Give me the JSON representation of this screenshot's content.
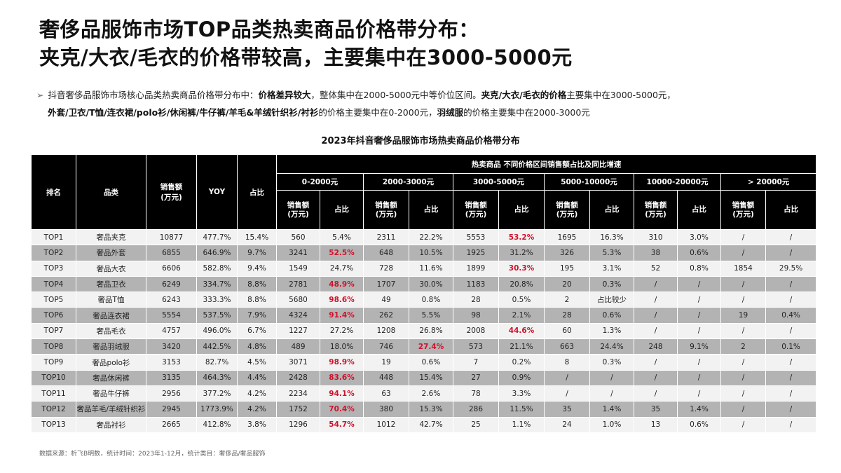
{
  "title": {
    "line1": "奢侈品服饰市场TOP品类热卖商品价格带分布：",
    "line2": "夹克/大衣/毛衣的价格带较高，主要集中在3000-5000元"
  },
  "summary": {
    "arrow": "➢",
    "p1": "抖音奢侈品服饰市场核心品类热卖商品价格带分布中：",
    "p1_bold": "价格差异较大",
    "p2": "，整体集中在2000-5000元中等价位区间。",
    "p2_bold": "夹克/大衣/毛衣的价格",
    "p3": "主要集中在3000-5000元，",
    "l2_bold": "外套/卫衣/T恤/连衣裙/polo衫/休闲裤/牛仔裤/羊毛&羊绒针织衫/衬衫",
    "l2_a": "的价格主要集中在0-2000元，",
    "l2_bold2": "羽绒服",
    "l2_b": "的价格主要集中在2000-3000元"
  },
  "table_title": "2023年抖音奢侈品服饰市场热卖商品价格带分布",
  "table": {
    "headers": {
      "rank": "排名",
      "category": "品类",
      "sales": "销售额\n(万元)",
      "yoy": "YOY",
      "share": "占比",
      "group": "热卖商品 不同价格区间销售额占比及同比增速",
      "bands": [
        "0-2000元",
        "2000-3000元",
        "3000-5000元",
        "5000-10000元",
        "10000-20000元",
        "> 20000元"
      ],
      "band_sales": "销售额\n(万元)",
      "band_share": "占比"
    },
    "rows": [
      {
        "cells": [
          "TOP1",
          "奢品夹克",
          "10877",
          "477.7%",
          "15.4%",
          "560",
          "5.4%",
          "2311",
          "22.2%",
          "5553",
          "53.2%",
          "1695",
          "16.3%",
          "310",
          "3.0%",
          "/",
          "/"
        ],
        "red": [
          10
        ]
      },
      {
        "cells": [
          "TOP2",
          "奢品外套",
          "6855",
          "646.9%",
          "9.7%",
          "3241",
          "52.5%",
          "648",
          "10.5%",
          "1925",
          "31.2%",
          "326",
          "5.3%",
          "38",
          "0.6%",
          "/",
          "/"
        ],
        "red": [
          6
        ]
      },
      {
        "cells": [
          "TOP3",
          "奢品大衣",
          "6606",
          "582.8%",
          "9.4%",
          "1549",
          "24.7%",
          "728",
          "11.6%",
          "1899",
          "30.3%",
          "195",
          "3.1%",
          "52",
          "0.8%",
          "1854",
          "29.5%"
        ],
        "red": [
          10
        ]
      },
      {
        "cells": [
          "TOP4",
          "奢品卫衣",
          "6249",
          "334.7%",
          "8.8%",
          "2781",
          "48.9%",
          "1707",
          "30.0%",
          "1183",
          "20.8%",
          "20",
          "0.3%",
          "/",
          "/",
          "/",
          "/"
        ],
        "red": [
          6
        ]
      },
      {
        "cells": [
          "TOP5",
          "奢品T恤",
          "6243",
          "333.3%",
          "8.8%",
          "5680",
          "98.6%",
          "49",
          "0.8%",
          "28",
          "0.5%",
          "2",
          "占比较少",
          "/",
          "/",
          "/",
          "/"
        ],
        "red": [
          6
        ]
      },
      {
        "cells": [
          "TOP6",
          "奢品连衣裙",
          "5554",
          "537.5%",
          "7.9%",
          "4324",
          "91.4%",
          "262",
          "5.5%",
          "98",
          "2.1%",
          "28",
          "0.6%",
          "/",
          "/",
          "19",
          "0.4%"
        ],
        "red": [
          6
        ]
      },
      {
        "cells": [
          "TOP7",
          "奢品毛衣",
          "4757",
          "496.0%",
          "6.7%",
          "1227",
          "27.2%",
          "1208",
          "26.8%",
          "2008",
          "44.6%",
          "60",
          "1.3%",
          "/",
          "/",
          "/",
          "/"
        ],
        "red": [
          10
        ]
      },
      {
        "cells": [
          "TOP8",
          "奢品羽绒服",
          "3420",
          "442.5%",
          "4.8%",
          "489",
          "18.0%",
          "746",
          "27.4%",
          "573",
          "21.1%",
          "663",
          "24.4%",
          "248",
          "9.1%",
          "2",
          "0.1%"
        ],
        "red": [
          8
        ]
      },
      {
        "cells": [
          "TOP9",
          "奢品polo衫",
          "3153",
          "82.7%",
          "4.5%",
          "3071",
          "98.9%",
          "19",
          "0.6%",
          "7",
          "0.2%",
          "8",
          "0.3%",
          "/",
          "/",
          "/",
          "/"
        ],
        "red": [
          6
        ]
      },
      {
        "cells": [
          "TOP10",
          "奢品休闲裤",
          "3135",
          "464.3%",
          "4.4%",
          "2428",
          "83.6%",
          "448",
          "15.4%",
          "27",
          "0.9%",
          "/",
          "/",
          "/",
          "/",
          "/",
          "/"
        ],
        "red": [
          6
        ]
      },
      {
        "cells": [
          "TOP11",
          "奢品牛仔裤",
          "2956",
          "377.2%",
          "4.2%",
          "2234",
          "94.1%",
          "63",
          "2.6%",
          "78",
          "3.3%",
          "/",
          "/",
          "/",
          "/",
          "/",
          "/"
        ],
        "red": [
          6
        ]
      },
      {
        "cells": [
          "TOP12",
          "奢品羊毛/羊绒针织衫",
          "2945",
          "1773.9%",
          "4.2%",
          "1752",
          "70.4%",
          "380",
          "15.3%",
          "286",
          "11.5%",
          "35",
          "1.4%",
          "35",
          "1.4%",
          "/",
          "/"
        ],
        "red": [
          6
        ]
      },
      {
        "cells": [
          "TOP13",
          "奢品衬衫",
          "2665",
          "412.8%",
          "3.8%",
          "1296",
          "54.7%",
          "1012",
          "42.7%",
          "25",
          "1.1%",
          "24",
          "1.0%",
          "13",
          "0.6%",
          "/",
          "/"
        ],
        "red": [
          6
        ]
      }
    ]
  },
  "source": "数据来源：析飞B明数，统计时间：2023年1-12月，统计类目：奢侈品/奢品服饰",
  "colors": {
    "header_bg": "#000000",
    "row_light": "#f2f2f2",
    "row_dark": "#b3b3b3",
    "highlight": "#d0112b"
  }
}
